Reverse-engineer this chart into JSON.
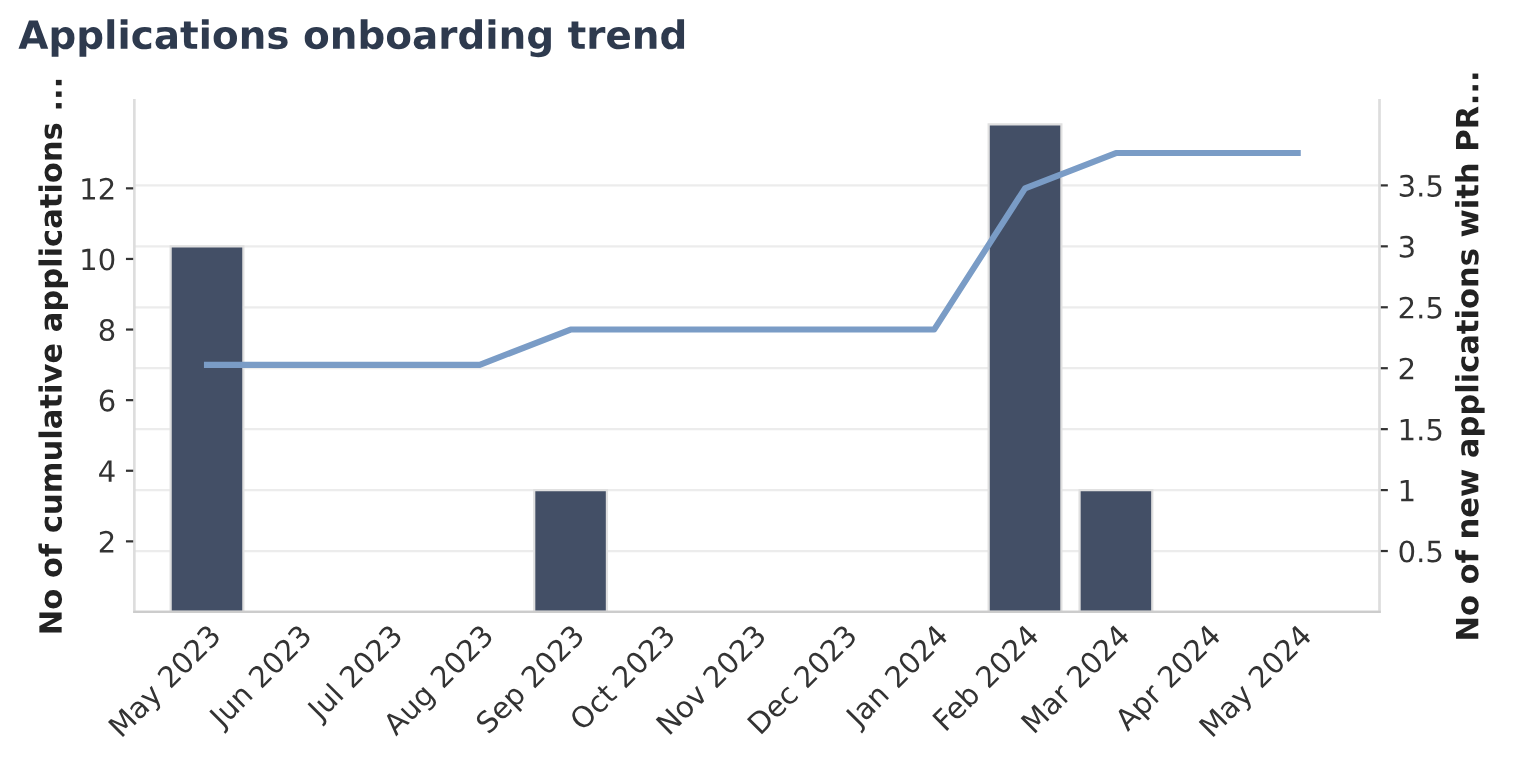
{
  "chart_data": {
    "type": "bar",
    "title": "Applications onboarding trend",
    "ylabel": "No of cumulative applications ...",
    "y2label": "No of new applications with PR...",
    "categories": [
      "May 2023",
      "Jun 2023",
      "Jul 2023",
      "Aug 2023",
      "Sep 2023",
      "Oct 2023",
      "Nov 2023",
      "Dec 2023",
      "Jan 2024",
      "Feb 2024",
      "Mar 2024",
      "Apr 2024",
      "May 2024"
    ],
    "series": [
      {
        "axis": "y2",
        "color": "#434f66",
        "values": [
          3,
          null,
          null,
          null,
          1,
          null,
          null,
          null,
          null,
          4,
          1,
          null,
          null
        ]
      },
      {
        "type": "line",
        "axis": "y",
        "color": "#7a9cc6",
        "values": [
          7,
          7,
          7,
          7,
          8,
          8,
          8,
          8,
          8,
          12,
          13,
          13,
          13
        ]
      }
    ],
    "ylim": [
      0,
      14.5
    ],
    "yticks": [
      2,
      4,
      6,
      8,
      10,
      12
    ],
    "y2lim": [
      0,
      4.2
    ],
    "y2ticks": [
      0.5,
      1,
      1.5,
      2,
      2.5,
      3,
      3.5
    ],
    "grid": "y2",
    "legend": false,
    "marker": "none",
    "line_style": "solid"
  }
}
